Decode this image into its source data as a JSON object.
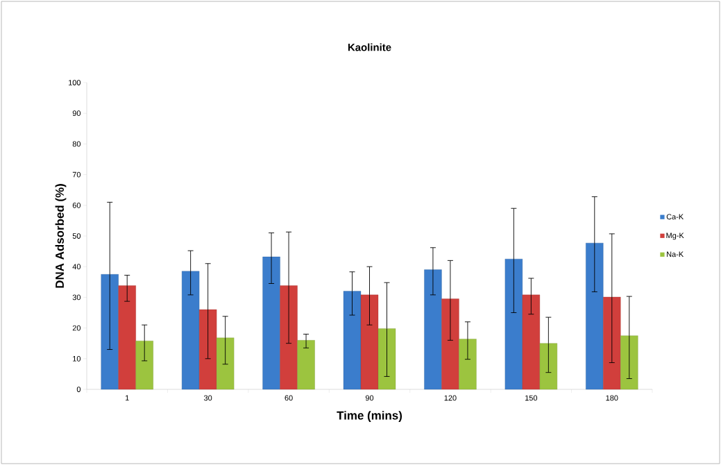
{
  "chart_data": {
    "type": "bar",
    "title": "Kaolinite",
    "xlabel": "Time (mins)",
    "ylabel": "DNA Adsorbed (%)",
    "categories": [
      "1",
      "30",
      "60",
      "90",
      "120",
      "150",
      "180"
    ],
    "series": [
      {
        "name": "Ca-K",
        "color": "#3b7dcc",
        "values": [
          37.5,
          38.5,
          43.2,
          32,
          39,
          42.5,
          47.7
        ],
        "errors": [
          [
            13,
            61
          ],
          [
            30.8,
            45.2
          ],
          [
            34.5,
            51
          ],
          [
            24.2,
            38.3
          ],
          [
            30.8,
            46.2
          ],
          [
            25,
            59
          ],
          [
            31.8,
            62.8
          ]
        ]
      },
      {
        "name": "Mg-K",
        "color": "#d13f3c",
        "values": [
          33.8,
          26,
          33.8,
          30.8,
          29.5,
          30.8,
          30.1
        ],
        "errors": [
          [
            28.7,
            37.2
          ],
          [
            10,
            41
          ],
          [
            15,
            51.3
          ],
          [
            21,
            40
          ],
          [
            16,
            42
          ],
          [
            24.5,
            36.2
          ],
          [
            8.7,
            50.7
          ]
        ]
      },
      {
        "name": "Na-K",
        "color": "#9cc43f",
        "values": [
          15.8,
          16.8,
          16,
          19.8,
          16.4,
          15,
          17.5
        ],
        "errors": [
          [
            9.3,
            21
          ],
          [
            8.2,
            23.8
          ],
          [
            13.5,
            18
          ],
          [
            4.2,
            34.8
          ],
          [
            9.8,
            22
          ],
          [
            5.5,
            23.5
          ],
          [
            3.5,
            30.3
          ]
        ]
      }
    ],
    "ylim": [
      0,
      100
    ],
    "yticks": [
      0,
      10,
      20,
      30,
      40,
      50,
      60,
      70,
      80,
      90,
      100
    ],
    "grid": false,
    "legend": "right"
  }
}
